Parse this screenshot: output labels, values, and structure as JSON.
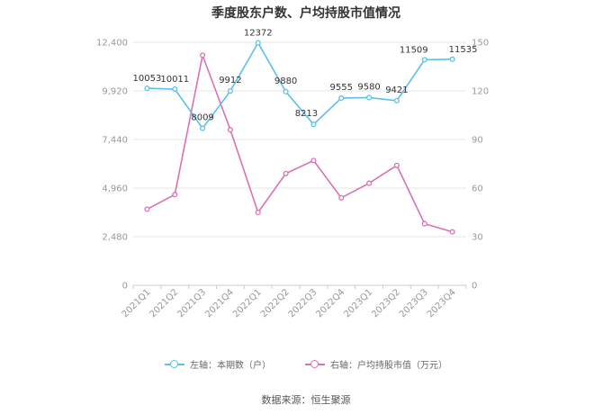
{
  "title": "季度股东户数、户均持股市值情况",
  "source": "数据来源：恒生聚源",
  "colors": {
    "left_series": "#5bc0eb",
    "right_series": "#d872b5",
    "grid": "#e6e6e6",
    "axis_text": "#999999"
  },
  "chart_data": {
    "type": "line",
    "categories": [
      "2021Q1",
      "2021Q2",
      "2021Q3",
      "2021Q4",
      "2022Q1",
      "2022Q2",
      "2022Q3",
      "2022Q4",
      "2023Q1",
      "2023Q2",
      "2023Q3",
      "2023Q4"
    ],
    "left_axis": {
      "min": 0,
      "max": 12400,
      "ticks": [
        "0",
        "2,480",
        "4,960",
        "7,440",
        "9,920",
        "12,400"
      ]
    },
    "right_axis": {
      "min": 0,
      "max": 150,
      "ticks": [
        "0",
        "30",
        "60",
        "90",
        "120",
        "150"
      ]
    },
    "grid": true,
    "legend_position": "bottom",
    "series": [
      {
        "name": "左轴：本期数（户）",
        "axis": "left",
        "values": [
          10053,
          10011,
          8009,
          9912,
          12372,
          9880,
          8213,
          9555,
          9580,
          9421,
          11509,
          11535
        ],
        "labels": [
          "10053",
          "10011",
          "8009",
          "9912",
          "12372",
          "9880",
          "8213",
          "9555",
          "9580",
          "9421",
          "11509",
          "11535"
        ]
      },
      {
        "name": "右轴：户均持股市值（万元）",
        "axis": "right",
        "values": [
          47,
          56,
          142,
          96,
          45,
          69,
          77,
          54,
          63,
          74,
          38,
          33
        ]
      }
    ]
  }
}
